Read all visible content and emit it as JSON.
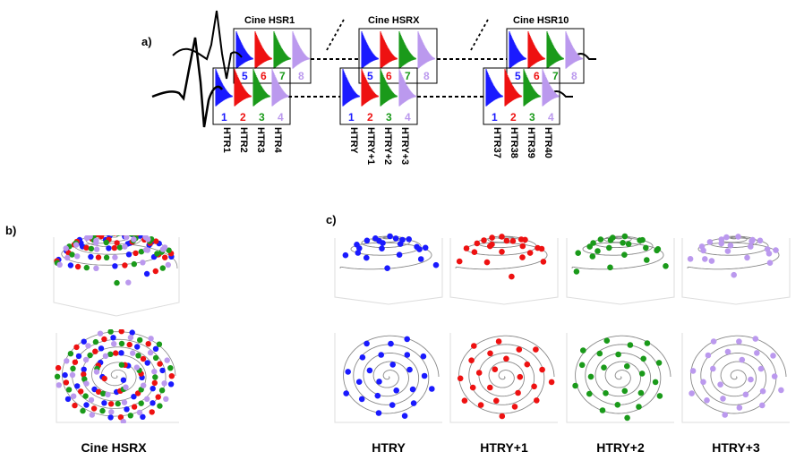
{
  "panel_labels": {
    "a": "a)",
    "b": "b)",
    "c": "c)"
  },
  "colors": {
    "blue": "#1a1aff",
    "red": "#ee1111",
    "green": "#1a9a1a",
    "purple": "#bb99ee",
    "line": "#000000",
    "spiral": "#888888"
  },
  "groups": [
    {
      "title": "Cine HSR1",
      "top_numbers": [
        "5",
        "6",
        "7",
        "8"
      ],
      "bottom_numbers": [
        "1",
        "2",
        "3",
        "4"
      ],
      "labels": [
        "HTR1",
        "HTR2",
        "HTR3",
        "HTR4"
      ]
    },
    {
      "title": "Cine HSRX",
      "top_numbers": [
        "5",
        "6",
        "7",
        "8"
      ],
      "bottom_numbers": [
        "1",
        "2",
        "3",
        "4"
      ],
      "labels": [
        "HTRY",
        "HTRY+1",
        "HTRY+2",
        "HTRY+3"
      ]
    },
    {
      "title": "Cine HSR10",
      "top_numbers": [
        "5",
        "6",
        "7",
        "8"
      ],
      "bottom_numbers": [
        "1",
        "2",
        "3",
        "4"
      ],
      "labels": [
        "HTR37",
        "HTR38",
        "HTR39",
        "HTR40"
      ]
    }
  ],
  "panel_b": {
    "caption": "Cine HSRX"
  },
  "panel_c": {
    "captions": [
      "HTRY",
      "HTRY+1",
      "HTRY+2",
      "HTRY+3"
    ]
  }
}
